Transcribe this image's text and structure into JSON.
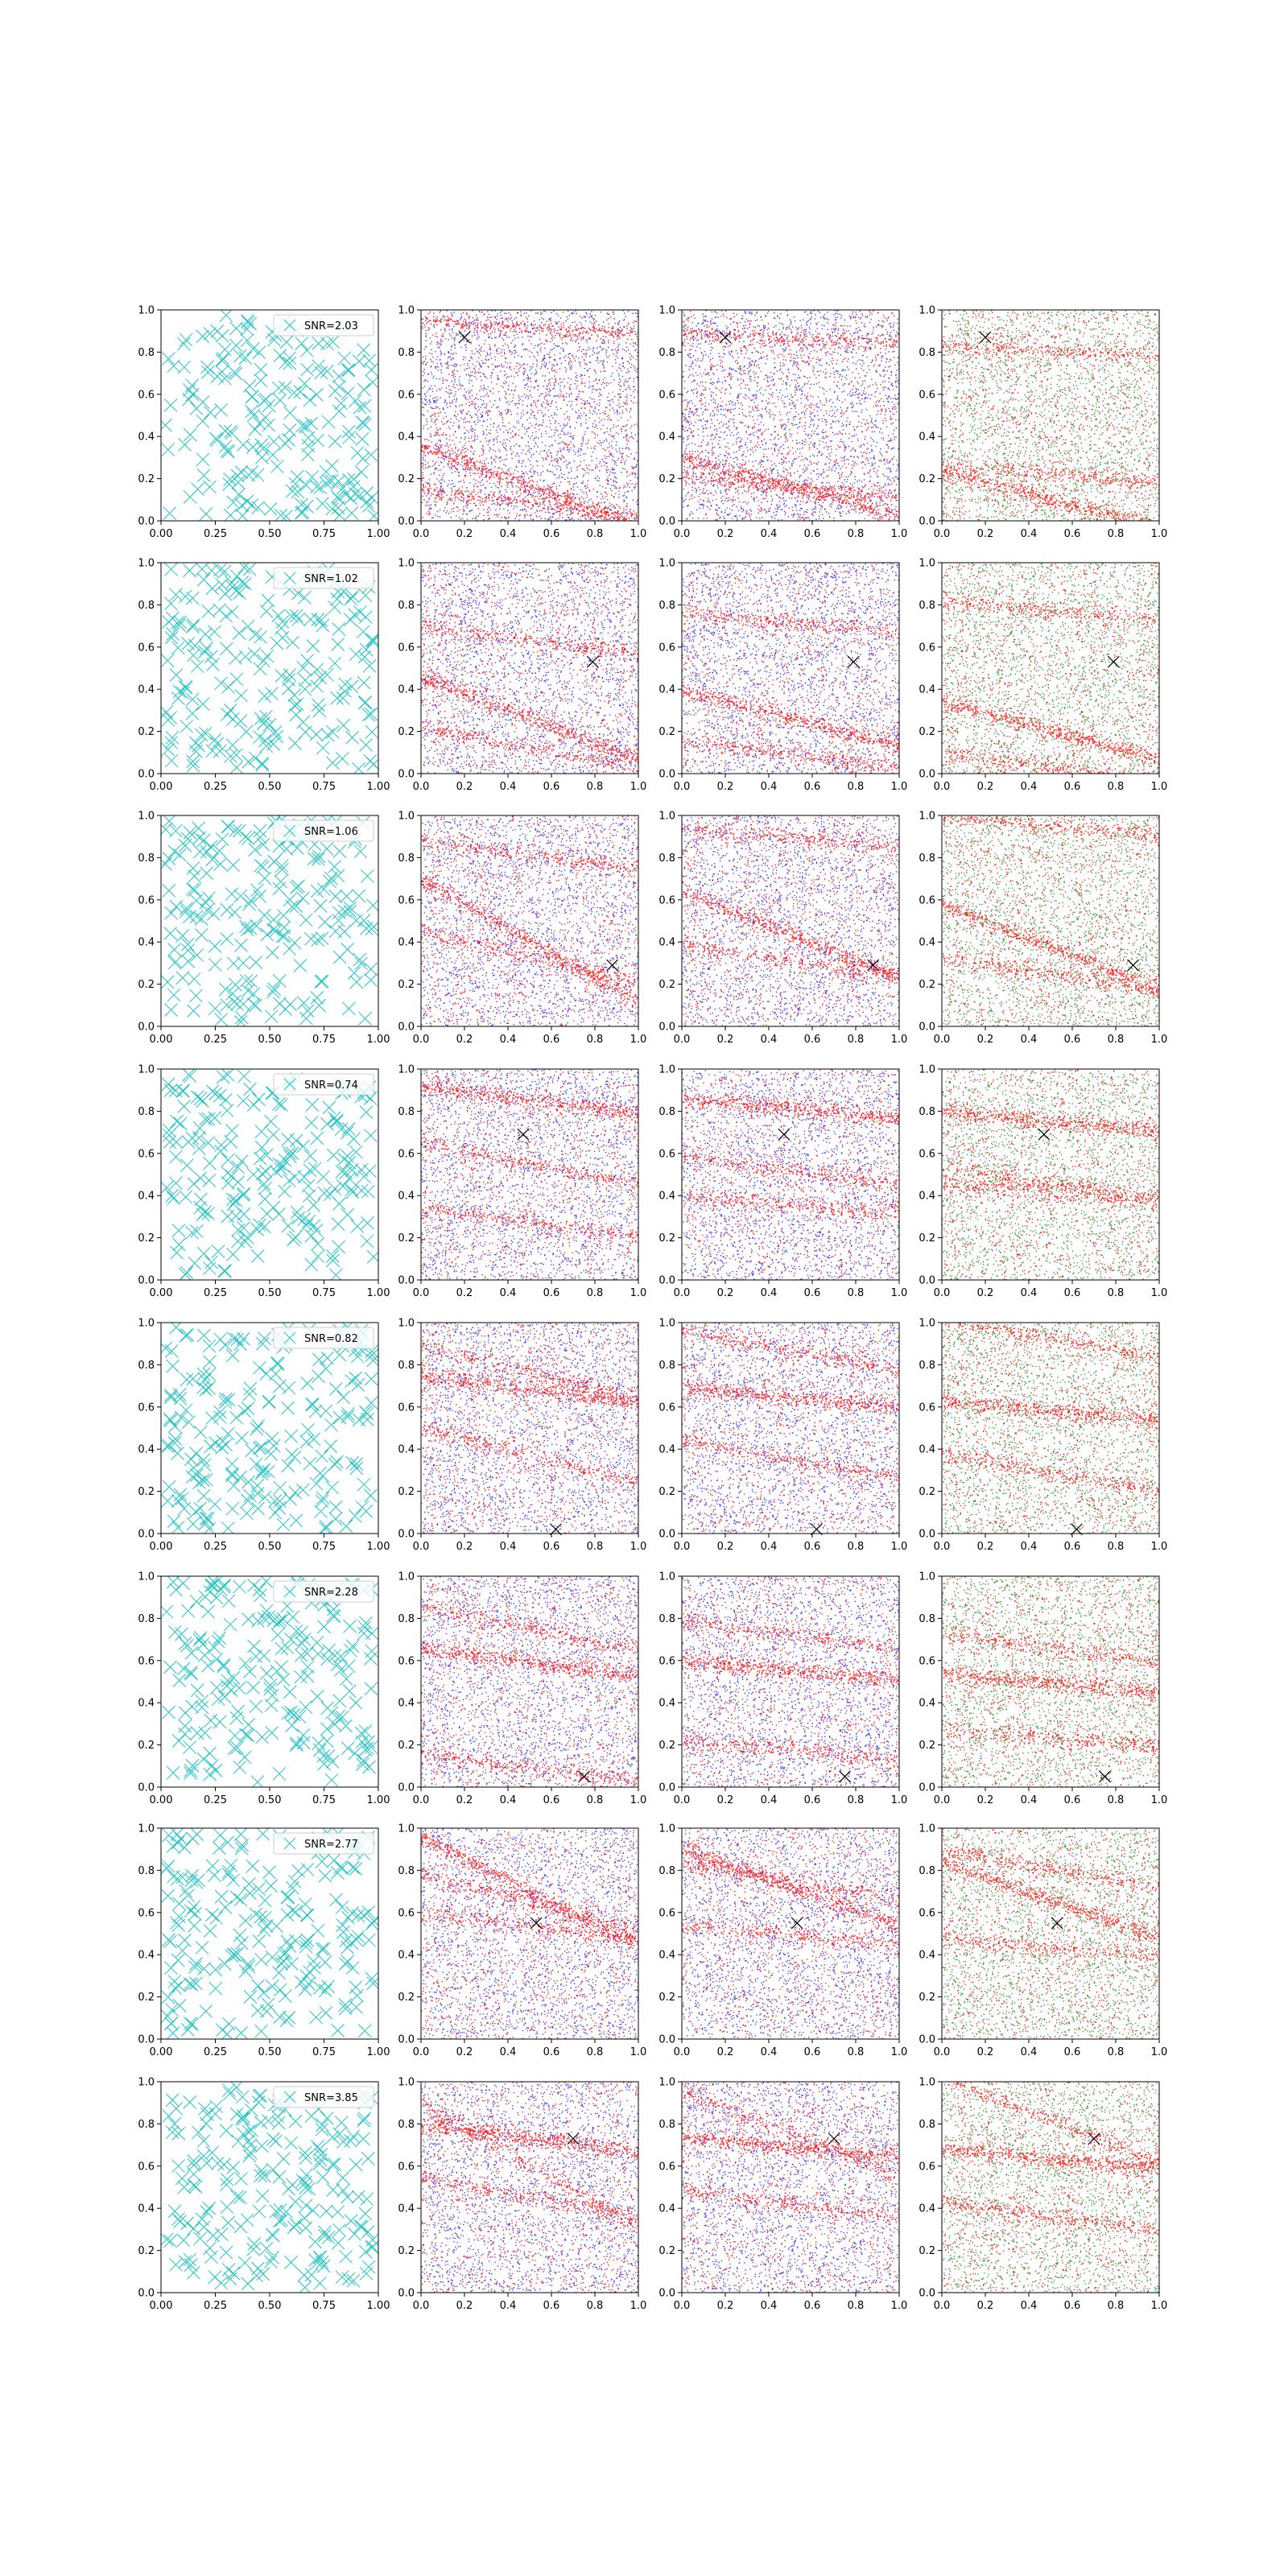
{
  "chart_data": {
    "type": "scatter",
    "layout": {
      "rows": 8,
      "cols": 4
    },
    "xlim": [
      0,
      1
    ],
    "ylim": [
      0,
      1
    ],
    "col0_xticks": [
      "0.00",
      "0.25",
      "0.50",
      "0.75",
      "1.00"
    ],
    "col0_yticks": [
      "0.0",
      "0.2",
      "0.4",
      "0.6",
      "0.8",
      "1.0"
    ],
    "xticks": [
      "0.0",
      "0.2",
      "0.4",
      "0.6",
      "0.8",
      "1.0"
    ],
    "yticks": [
      "0.0",
      "0.2",
      "0.4",
      "0.6",
      "0.8",
      "1.0"
    ],
    "colors": {
      "template_points": "#22c3c3",
      "noise_points": "#0000ff",
      "signal_points": "#ff0000",
      "green_points": "#008000",
      "marker": "#000000",
      "axis": "#000000"
    },
    "rows": [
      {
        "legend": "SNR=2.03",
        "marker": [
          0.2,
          0.87
        ],
        "tracks": [
          [
            0.36,
            -0.3
          ],
          [
            0.15,
            -0.1
          ],
          [
            0.95,
            -0.05
          ]
        ]
      },
      {
        "legend": "SNR=1.02",
        "marker": [
          0.79,
          0.53
        ],
        "tracks": [
          [
            0.46,
            -0.3
          ],
          [
            0.7,
            -0.1
          ],
          [
            0.22,
            -0.15
          ]
        ]
      },
      {
        "legend": "SNR=1.06",
        "marker": [
          0.88,
          0.29
        ],
        "tracks": [
          [
            0.7,
            -0.45
          ],
          [
            0.88,
            -0.1
          ],
          [
            0.45,
            -0.18
          ]
        ]
      },
      {
        "legend": "SNR=0.74",
        "marker": [
          0.47,
          0.69
        ],
        "tracks": [
          [
            0.92,
            -0.1
          ],
          [
            0.34,
            -0.1
          ],
          [
            0.65,
            -0.15
          ]
        ]
      },
      {
        "legend": "SNR=0.82",
        "marker": [
          0.62,
          0.02
        ],
        "tracks": [
          [
            0.75,
            -0.1
          ],
          [
            0.9,
            -0.2
          ],
          [
            0.5,
            -0.2
          ]
        ]
      },
      {
        "legend": "SNR=2.28",
        "marker": [
          0.75,
          0.05
        ],
        "tracks": [
          [
            0.66,
            -0.1
          ],
          [
            0.16,
            -0.1
          ],
          [
            0.85,
            -0.15
          ]
        ]
      },
      {
        "legend": "SNR=2.77",
        "marker": [
          0.53,
          0.55
        ],
        "tracks": [
          [
            0.96,
            -0.4
          ],
          [
            0.78,
            -0.2
          ],
          [
            0.6,
            -0.1
          ]
        ]
      },
      {
        "legend": "SNR=3.85",
        "marker": [
          0.7,
          0.73
        ],
        "tracks": [
          [
            0.8,
            -0.1
          ],
          [
            0.9,
            -0.45
          ],
          [
            0.55,
            -0.15
          ]
        ]
      }
    ]
  }
}
